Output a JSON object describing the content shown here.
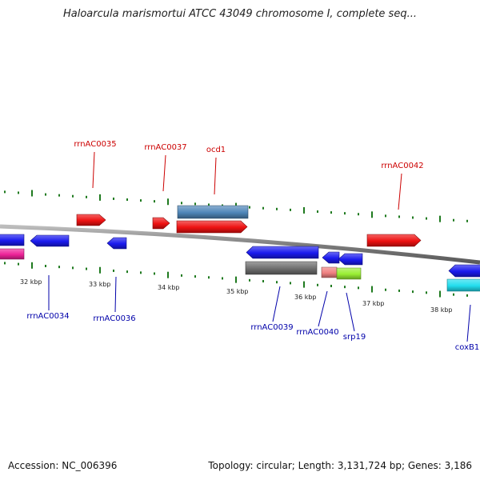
{
  "title": "Haloarcula marismortui ATCC 43049 chromosome I, complete seq...",
  "footer": {
    "accession": "Accession: NC_006396",
    "stats": "Topology: circular; Length: 3,131,724 bp; Genes: 3,186"
  },
  "colors": {
    "backbone": "#888888",
    "tick": "#1f7a1f",
    "plus_label": "#cc0000",
    "minus_label": "#0000aa"
  },
  "kbp_ticks": [
    {
      "kbp": 32,
      "label": "32 kbp"
    },
    {
      "kbp": 33,
      "label": "33 kbp"
    },
    {
      "kbp": 34,
      "label": "34 kbp"
    },
    {
      "kbp": 35,
      "label": "35 kbp"
    },
    {
      "kbp": 36,
      "label": "36 kbp"
    },
    {
      "kbp": 37,
      "label": "37 kbp"
    },
    {
      "kbp": 38,
      "label": "38 kbp"
    }
  ],
  "genes": [
    {
      "id": "g-left-blue",
      "strand": "minus",
      "color": "#1a1aee",
      "label": ""
    },
    {
      "id": "g-left-pink",
      "strand": "minus",
      "color": "#ee2299",
      "label": ""
    },
    {
      "id": "rrnAC0034",
      "strand": "minus",
      "color": "#1a1aee",
      "label": "rrnAC0034"
    },
    {
      "id": "rrnAC0035",
      "strand": "plus",
      "color": "#ee1111",
      "label": "rrnAC0035"
    },
    {
      "id": "rrnAC0036",
      "strand": "minus",
      "color": "#1a1aee",
      "label": "rrnAC0036"
    },
    {
      "id": "rrnAC0037",
      "strand": "plus",
      "color": "#ee1111",
      "label": "rrnAC0037"
    },
    {
      "id": "ocd1",
      "strand": "plus",
      "color": "#ee1111",
      "label": "ocd1"
    },
    {
      "id": "ocd1-feature",
      "strand": "plus",
      "color": "#4f86b8",
      "label": ""
    },
    {
      "id": "rrnAC0039",
      "strand": "minus",
      "color": "#1a1aee",
      "label": "rrnAC0039"
    },
    {
      "id": "rrnAC0039-feature",
      "strand": "minus",
      "color": "#6e6e6e",
      "label": ""
    },
    {
      "id": "rrnAC0040",
      "strand": "minus",
      "color": "#1a1aee",
      "label": "rrnAC0040"
    },
    {
      "id": "rrnAC0040-feature",
      "strand": "minus",
      "color": "#f08080",
      "label": ""
    },
    {
      "id": "srp19",
      "strand": "minus",
      "color": "#1a1aee",
      "label": "srp19"
    },
    {
      "id": "srp19-feature",
      "strand": "minus",
      "color": "#99ee33",
      "label": ""
    },
    {
      "id": "rrnAC0042",
      "strand": "plus",
      "color": "#ee1111",
      "label": "rrnAC0042"
    },
    {
      "id": "coxB1",
      "strand": "minus",
      "color": "#1a1aee",
      "label": "coxB1"
    },
    {
      "id": "coxB1-feature",
      "strand": "minus",
      "color": "#22ddee",
      "label": ""
    }
  ]
}
